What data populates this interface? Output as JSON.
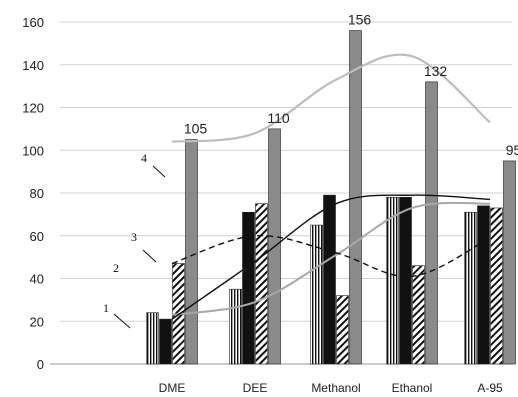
{
  "chart_data": {
    "type": "bar",
    "categories": [
      "DME",
      "DEE",
      "Methanol",
      "Ethanol",
      "A-95"
    ],
    "ylim": [
      0,
      160
    ],
    "yticks": [
      0,
      20,
      40,
      60,
      80,
      100,
      120,
      140,
      160
    ],
    "grid": true,
    "series": [
      {
        "pattern": "vertical-stripes",
        "values": [
          24,
          35,
          65,
          78,
          71
        ]
      },
      {
        "pattern": "solid-black",
        "values": [
          21,
          71,
          79,
          78,
          74
        ]
      },
      {
        "pattern": "diagonal-hatch",
        "values": [
          47,
          75,
          32,
          46,
          73
        ]
      },
      {
        "pattern": "solid-gray",
        "values": [
          105,
          110,
          156,
          132,
          95
        ]
      }
    ],
    "data_labels": [
      "105",
      "110",
      "156",
      "132",
      "95"
    ],
    "curves": [
      {
        "label": "1",
        "style": "gray-solid",
        "values": [
          23,
          29,
          51,
          73,
          75
        ]
      },
      {
        "label": "2",
        "style": "black-solid",
        "values": [
          21,
          48,
          75,
          79,
          77
        ]
      },
      {
        "label": "3",
        "style": "black-dashed",
        "values": [
          47,
          60,
          52,
          41,
          59
        ]
      },
      {
        "label": "4",
        "style": "light-gray",
        "values": [
          104,
          108,
          133,
          144,
          113
        ]
      }
    ],
    "colors": {
      "bar_solid_gray": "#8a8a8a",
      "curve_light": "#bdbdbd",
      "curve_gray": "#a8a8a8",
      "grid": "#d0d0d0"
    }
  }
}
